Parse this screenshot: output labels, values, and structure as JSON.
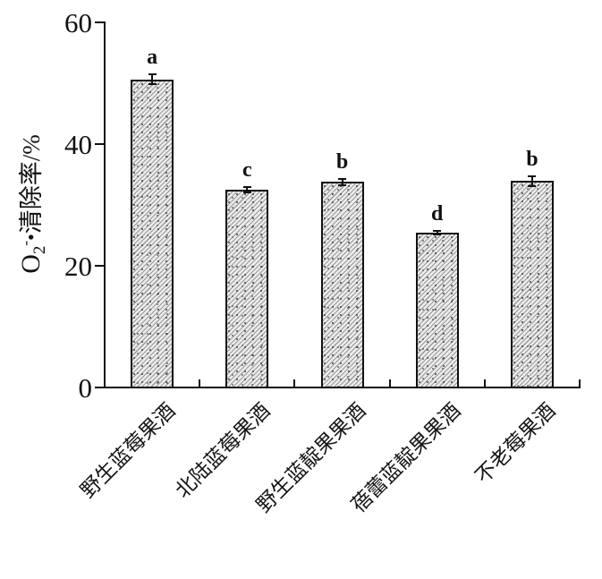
{
  "chart": {
    "background": "#ffffff",
    "axis_color": "#111111",
    "bar_fill": "#ececec",
    "hatch_line_color": "#999999",
    "text_color": "#111111"
  },
  "chart_data": {
    "type": "bar",
    "title": "",
    "ylabel": "O2-•清除率/%",
    "ylabel_parts": {
      "element": "O",
      "subscript": "2",
      "superscript": "-",
      "radical_dot": "•",
      "text": "清除率/%"
    },
    "xlabel": "",
    "categories": [
      "野生蓝莓果酒",
      "北陆蓝莓果酒",
      "野生蓝靛果果酒",
      "蓓蕾蓝靛果果酒",
      "不老莓果酒"
    ],
    "values": [
      50.6,
      32.5,
      33.8,
      25.4,
      33.9
    ],
    "errors": [
      0.8,
      0.5,
      0.5,
      0.3,
      0.8
    ],
    "sig_letters": [
      "a",
      "c",
      "b",
      "d",
      "b"
    ],
    "ylim": [
      0,
      60
    ],
    "yticks": [
      0,
      20,
      40,
      60
    ],
    "grid": false,
    "legend": null,
    "hatch": "fine-diagonal-with-dots",
    "bar_border_color": "#111111"
  }
}
